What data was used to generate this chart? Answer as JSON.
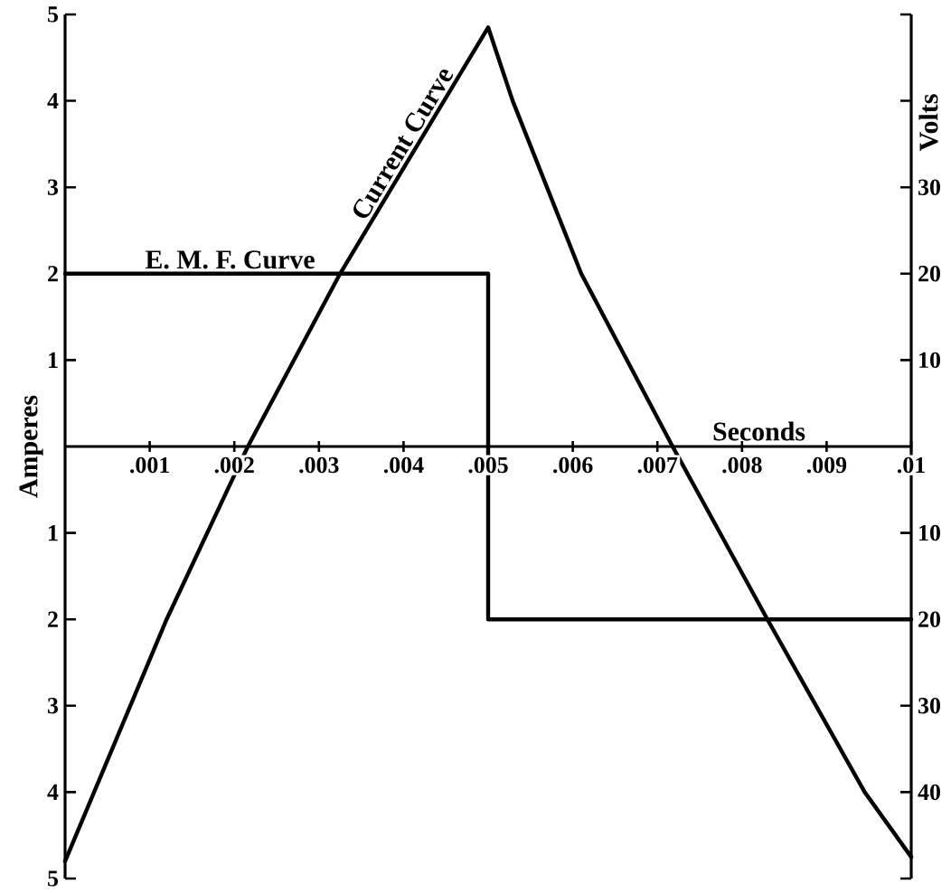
{
  "chart_data": {
    "type": "line",
    "xlabel": "Seconds",
    "ylabel": "Amperes",
    "y2label": "Volts",
    "xlim": [
      0,
      0.01
    ],
    "ylim": [
      -5,
      5
    ],
    "y2lim": [
      -50,
      50
    ],
    "xticks": [
      {
        "value": 0.001,
        "label": ".001"
      },
      {
        "value": 0.002,
        "label": ".002"
      },
      {
        "value": 0.003,
        "label": ".003"
      },
      {
        "value": 0.004,
        "label": ".004"
      },
      {
        "value": 0.005,
        "label": ".005"
      },
      {
        "value": 0.006,
        "label": ".006"
      },
      {
        "value": 0.007,
        "label": ".007"
      },
      {
        "value": 0.008,
        "label": ".008"
      },
      {
        "value": 0.009,
        "label": ".009"
      },
      {
        "value": 0.01,
        "label": ".01"
      }
    ],
    "yticks": [
      {
        "value": -5,
        "label": "5"
      },
      {
        "value": -4,
        "label": "4"
      },
      {
        "value": -3,
        "label": "3"
      },
      {
        "value": -2,
        "label": "2"
      },
      {
        "value": -1,
        "label": "1"
      },
      1,
      2,
      3,
      4,
      5
    ],
    "y2ticks": [
      {
        "value": -50,
        "label": null
      },
      {
        "value": -40,
        "label": "40"
      },
      {
        "value": -30,
        "label": "30"
      },
      {
        "value": -20,
        "label": "20"
      },
      {
        "value": -10,
        "label": "10"
      },
      10,
      20,
      30,
      {
        "value": 40,
        "label": null
      },
      {
        "value": 50,
        "label": null
      }
    ],
    "series": [
      {
        "name": "Current Curve",
        "color": "#000000",
        "x": [
          0,
          0.0012,
          0.00216,
          0.00325,
          0.005,
          0.00529,
          0.0061,
          0.00718,
          0.0083,
          0.00945,
          0.01
        ],
        "values": [
          -4.8,
          -2,
          0,
          2,
          4.85,
          4,
          2,
          0,
          -2,
          -4,
          -4.75
        ]
      },
      {
        "name": "E. M. F. Curve",
        "color": "#000000",
        "axis": "y2",
        "x": [
          0,
          0.005,
          0.005,
          0.01
        ],
        "values": [
          20,
          20,
          -20,
          -20
        ]
      }
    ]
  }
}
